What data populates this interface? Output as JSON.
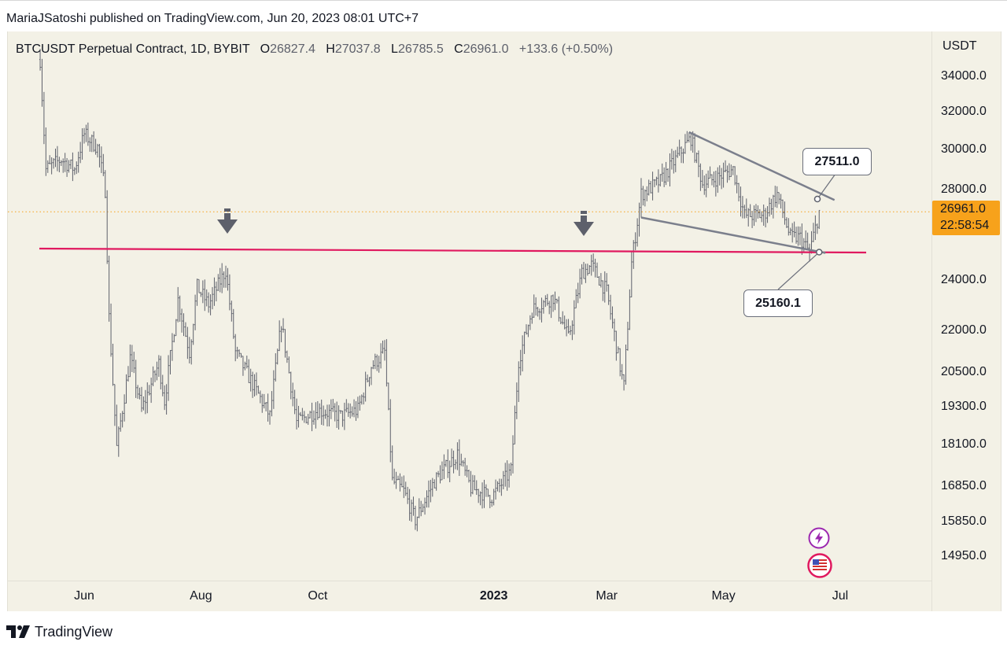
{
  "header": {
    "published_text": "MariaJSatoshi published on TradingView.com, Jun 20, 2023 08:01 UTC+7"
  },
  "legend": {
    "symbol_text": "BTCUSDT Perpetual Contract, 1D, BYBIT",
    "open_label": "O",
    "open_value": "26827.4",
    "high_label": "H",
    "high_value": "27037.8",
    "low_label": "L",
    "low_value": "26785.5",
    "close_label": "C",
    "close_value": "26961.0",
    "change": "+133.6 (+0.50%)"
  },
  "price_axis": {
    "unit": "USDT",
    "ticks": [
      "34000.0",
      "32000.0",
      "30000.0",
      "28000.0",
      "24000.0",
      "22000.0",
      "20500.0",
      "19300.0",
      "18100.0",
      "16850.0",
      "15850.0",
      "14950.0"
    ],
    "current_price": "26961.0",
    "countdown": "22:58:54"
  },
  "time_axis": {
    "labels": [
      "Jun",
      "Aug",
      "Oct",
      "2023",
      "Mar",
      "May",
      "Jul"
    ],
    "bold_label": "2023"
  },
  "annotations": {
    "upper_callout": "27511.0",
    "lower_callout": "25160.1"
  },
  "colors": {
    "background": "#f3f1e6",
    "candles": "#5d606b",
    "support_line": "#e0195f",
    "trendlines": "#7b7f8c",
    "price_tag": "#f7a21b",
    "current_price_line": "#f7a21b",
    "arrows": "#5d606b"
  },
  "icons": [
    "down-arrow-icon",
    "bolt-icon",
    "us-flag-icon",
    "tradingview-logo-icon"
  ],
  "footer": {
    "brand": "TradingView"
  },
  "chart_data": {
    "type": "ohlc",
    "symbol": "BTCUSDT Perpetual Contract",
    "interval": "1D",
    "exchange": "BYBIT",
    "y_scale": "log",
    "ylim": [
      14500,
      35500
    ],
    "x_range": [
      "2022-05-08",
      "2023-07-12"
    ],
    "current_price": 26961.0,
    "support_level": 25400,
    "wedge": {
      "upper_line": [
        [
          "2023-04-13",
          30900
        ],
        [
          "2023-06-28",
          27511.0
        ]
      ],
      "lower_line": [
        [
          "2023-03-19",
          26700
        ],
        [
          "2023-06-20",
          25160.1
        ]
      ]
    },
    "arrows_at": [
      "2022-08-14",
      "2023-02-21"
    ],
    "price_path": [
      [
        "2022-05-09",
        35000
      ],
      [
        "2022-05-12",
        29000
      ],
      [
        "2022-05-20",
        29500
      ],
      [
        "2022-05-27",
        29000
      ],
      [
        "2022-06-01",
        30800
      ],
      [
        "2022-06-08",
        30100
      ],
      [
        "2022-06-12",
        28000
      ],
      [
        "2022-06-14",
        22500
      ],
      [
        "2022-06-18",
        18000
      ],
      [
        "2022-06-25",
        21000
      ],
      [
        "2022-07-01",
        19200
      ],
      [
        "2022-07-10",
        20800
      ],
      [
        "2022-07-13",
        19500
      ],
      [
        "2022-07-20",
        23200
      ],
      [
        "2022-07-26",
        21200
      ],
      [
        "2022-07-30",
        23700
      ],
      [
        "2022-08-05",
        23000
      ],
      [
        "2022-08-14",
        24400
      ],
      [
        "2022-08-19",
        21200
      ],
      [
        "2022-08-27",
        20200
      ],
      [
        "2022-09-06",
        19000
      ],
      [
        "2022-09-12",
        22300
      ],
      [
        "2022-09-20",
        18800
      ],
      [
        "2022-10-01",
        19200
      ],
      [
        "2022-10-13",
        19000
      ],
      [
        "2022-10-22",
        19200
      ],
      [
        "2022-10-29",
        20700
      ],
      [
        "2022-11-05",
        21200
      ],
      [
        "2022-11-09",
        17000
      ],
      [
        "2022-11-15",
        16700
      ],
      [
        "2022-11-21",
        15900
      ],
      [
        "2022-12-01",
        17000
      ],
      [
        "2022-12-13",
        17800
      ],
      [
        "2022-12-20",
        16800
      ],
      [
        "2022-12-31",
        16550
      ],
      [
        "2023-01-10",
        17300
      ],
      [
        "2023-01-14",
        20900
      ],
      [
        "2023-01-21",
        22800
      ],
      [
        "2023-02-01",
        23300
      ],
      [
        "2023-02-09",
        21700
      ],
      [
        "2023-02-16",
        24300
      ],
      [
        "2023-02-21",
        24600
      ],
      [
        "2023-03-01",
        23500
      ],
      [
        "2023-03-09",
        20300
      ],
      [
        "2023-03-10",
        20000
      ],
      [
        "2023-03-14",
        24700
      ],
      [
        "2023-03-19",
        27800
      ],
      [
        "2023-03-29",
        28400
      ],
      [
        "2023-04-11",
        30200
      ],
      [
        "2023-04-14",
        30600
      ],
      [
        "2023-04-20",
        28300
      ],
      [
        "2023-04-26",
        28500
      ],
      [
        "2023-05-06",
        29000
      ],
      [
        "2023-05-12",
        26800
      ],
      [
        "2023-05-22",
        26800
      ],
      [
        "2023-05-29",
        27800
      ],
      [
        "2023-06-05",
        25800
      ],
      [
        "2023-06-10",
        25800
      ],
      [
        "2023-06-15",
        25150
      ],
      [
        "2023-06-20",
        26961
      ]
    ]
  }
}
